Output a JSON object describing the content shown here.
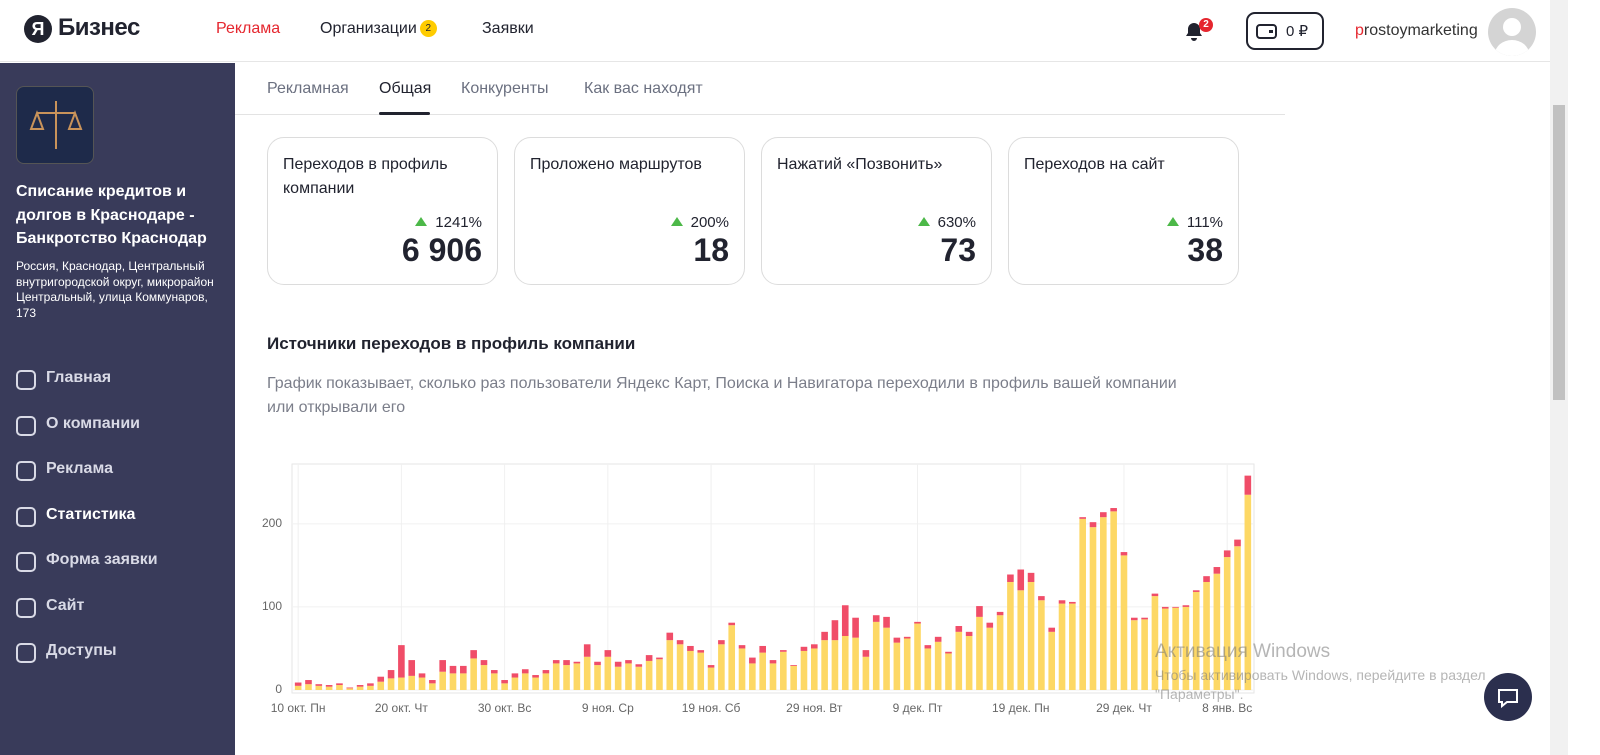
{
  "header": {
    "logo_mark": "Я",
    "logo_text": "Бизнес",
    "nav": [
      "Реклама",
      "Организации",
      "Заявки"
    ],
    "org_badge": "2",
    "bell_badge": "2",
    "balance": "0 ₽",
    "user": "prostoymarketing"
  },
  "sidebar": {
    "company_name": "Списание кредитов и долгов в Краснодаре - Банкротство Краснодар",
    "address": "Россия, Краснодар, Центральный внутригородской округ, микрорайон Центральный, улица Коммунаров, 173",
    "menu": [
      "Главная",
      "О компании",
      "Реклама",
      "Статистика",
      "Форма заявки",
      "Сайт",
      "Доступы"
    ],
    "active": "Статистика"
  },
  "tabs": [
    "Рекламная",
    "Общая",
    "Конкуренты",
    "Как вас находят"
  ],
  "active_tab": "Общая",
  "cards": [
    {
      "title": "Переходов в профиль компании",
      "change": "1241%",
      "value": "6 906"
    },
    {
      "title": "Проложено маршрутов",
      "change": "200%",
      "value": "18"
    },
    {
      "title": "Нажатий «Позвонить»",
      "change": "630%",
      "value": "73"
    },
    {
      "title": "Переходов на сайт",
      "change": "111%",
      "value": "38"
    }
  ],
  "section": {
    "title": "Источники переходов в профиль компании",
    "description": "График показывает, сколько раз пользователи Яндекс Карт, Поиска и Навигатора переходили в профиль вашей компании или открывали его"
  },
  "chart_data": {
    "type": "stacked-bar",
    "categories": [
      "10 окт. Пн",
      null,
      null,
      null,
      null,
      null,
      null,
      null,
      null,
      null,
      "20 окт. Чт",
      null,
      null,
      null,
      null,
      null,
      null,
      null,
      null,
      null,
      "30 окт. Вс",
      null,
      null,
      null,
      null,
      null,
      null,
      null,
      null,
      null,
      "9 ноя. Ср",
      null,
      null,
      null,
      null,
      null,
      null,
      null,
      null,
      null,
      "19 ноя. Сб",
      null,
      null,
      null,
      null,
      null,
      null,
      null,
      null,
      null,
      "29 ноя. Вт",
      null,
      null,
      null,
      null,
      null,
      null,
      null,
      null,
      null,
      "9 дек. Пт",
      null,
      null,
      null,
      null,
      null,
      null,
      null,
      null,
      null,
      "19 дек. Пн",
      null,
      null,
      null,
      null,
      null,
      null,
      null,
      null,
      null,
      "29 дек. Чт",
      null,
      null,
      null,
      null,
      null,
      null,
      null,
      null,
      null,
      "8 янв. Вс",
      null,
      null
    ],
    "series": [
      {
        "color": "#fdd865",
        "values": [
          5,
          7,
          5,
          4,
          6,
          2,
          4,
          5,
          10,
          14,
          15,
          17,
          15,
          8,
          22,
          20,
          20,
          38,
          30,
          20,
          8,
          15,
          20,
          15,
          20,
          32,
          30,
          32,
          40,
          30,
          40,
          28,
          32,
          28,
          35,
          37,
          60,
          55,
          47,
          45,
          27,
          55,
          78,
          50,
          32,
          45,
          32,
          46,
          29,
          47,
          50,
          60,
          60,
          65,
          63,
          40,
          82,
          75,
          57,
          62,
          80,
          50,
          58,
          44,
          70,
          65,
          88,
          75,
          90,
          130,
          120,
          130,
          108,
          70,
          104,
          104,
          206,
          196,
          208,
          215,
          162,
          84,
          85,
          113,
          98,
          99,
          100,
          118,
          130,
          140,
          160,
          173,
          235
        ]
      },
      {
        "color": "#f04d68",
        "values": [
          4,
          5,
          2,
          2,
          2,
          1,
          2,
          3,
          6,
          10,
          39,
          19,
          5,
          4,
          14,
          9,
          9,
          10,
          6,
          4,
          4,
          5,
          5,
          3,
          4,
          4,
          6,
          2,
          15,
          4,
          8,
          6,
          4,
          3,
          7,
          2,
          9,
          5,
          6,
          3,
          3,
          5,
          3,
          4,
          7,
          8,
          4,
          2,
          1,
          5,
          5,
          10,
          24,
          37,
          24,
          8,
          8,
          13,
          6,
          2,
          2,
          4,
          6,
          2,
          7,
          5,
          13,
          6,
          4,
          9,
          25,
          11,
          5,
          5,
          4,
          2,
          2,
          6,
          6,
          4,
          4,
          3,
          2,
          3,
          2,
          1,
          2,
          2,
          7,
          8,
          8,
          8,
          23
        ]
      }
    ],
    "ylim": [
      0,
      272
    ],
    "yticks": [
      0,
      100,
      200
    ],
    "grid": true
  },
  "watermark": {
    "title": "Активация Windows",
    "text": "Чтобы активировать Windows, перейдите в раздел \"Параметры\"."
  }
}
